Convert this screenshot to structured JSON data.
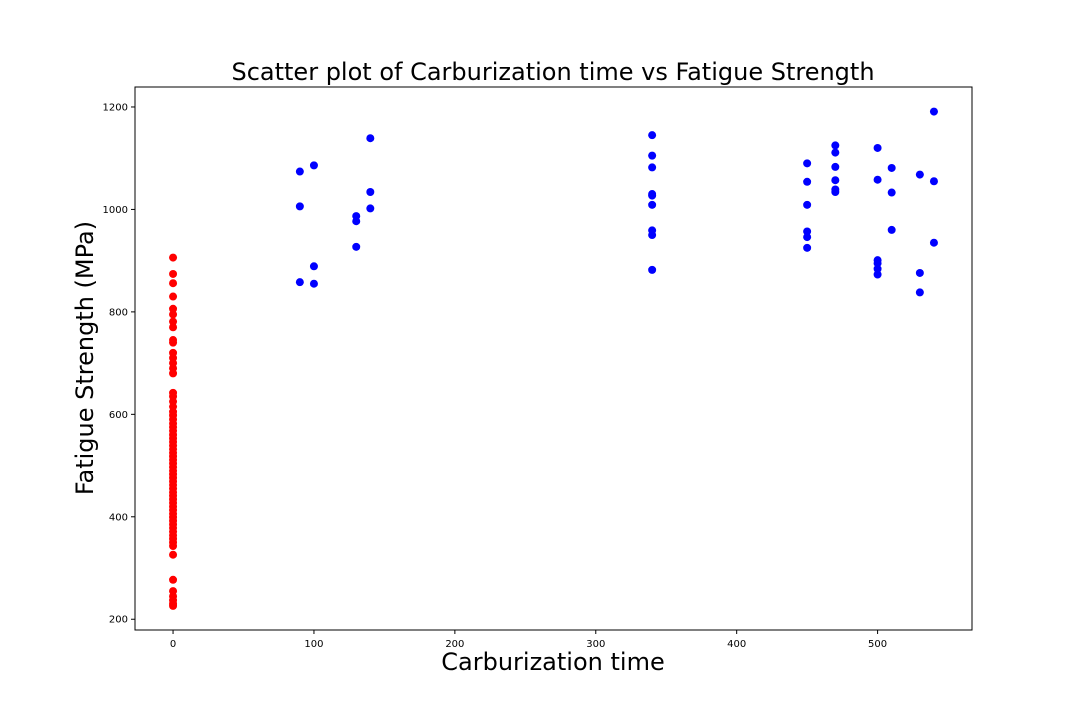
{
  "chart_data": {
    "type": "scatter",
    "title": "Scatter plot of Carburization time vs Fatigue Strength",
    "xlabel": "Carburization time",
    "ylabel": "Fatigue Strength (MPa)",
    "xlim": [
      -27,
      567
    ],
    "ylim": [
      179,
      1239
    ],
    "xticks": [
      0,
      100,
      200,
      300,
      400,
      500
    ],
    "yticks": [
      200,
      400,
      600,
      800,
      1000,
      1200
    ],
    "grid": false,
    "colors": {
      "zero": "#ff0000",
      "nonzero": "#0000ff"
    },
    "series": [
      {
        "color": "#ff0000",
        "points": [
          [
            0,
            906
          ],
          [
            0,
            874
          ],
          [
            0,
            856
          ],
          [
            0,
            830
          ],
          [
            0,
            806
          ],
          [
            0,
            795
          ],
          [
            0,
            781
          ],
          [
            0,
            770
          ],
          [
            0,
            745
          ],
          [
            0,
            740
          ],
          [
            0,
            720
          ],
          [
            0,
            710
          ],
          [
            0,
            700
          ],
          [
            0,
            690
          ],
          [
            0,
            680
          ],
          [
            0,
            642
          ],
          [
            0,
            635
          ],
          [
            0,
            625
          ],
          [
            0,
            615
          ],
          [
            0,
            605
          ],
          [
            0,
            598
          ],
          [
            0,
            590
          ],
          [
            0,
            582
          ],
          [
            0,
            575
          ],
          [
            0,
            568
          ],
          [
            0,
            560
          ],
          [
            0,
            553
          ],
          [
            0,
            546
          ],
          [
            0,
            539
          ],
          [
            0,
            532
          ],
          [
            0,
            525
          ],
          [
            0,
            518
          ],
          [
            0,
            511
          ],
          [
            0,
            504
          ],
          [
            0,
            497
          ],
          [
            0,
            490
          ],
          [
            0,
            483
          ],
          [
            0,
            476
          ],
          [
            0,
            469
          ],
          [
            0,
            462
          ],
          [
            0,
            455
          ],
          [
            0,
            448
          ],
          [
            0,
            441
          ],
          [
            0,
            434
          ],
          [
            0,
            427
          ],
          [
            0,
            420
          ],
          [
            0,
            413
          ],
          [
            0,
            406
          ],
          [
            0,
            399
          ],
          [
            0,
            392
          ],
          [
            0,
            385
          ],
          [
            0,
            378
          ],
          [
            0,
            371
          ],
          [
            0,
            364
          ],
          [
            0,
            357
          ],
          [
            0,
            350
          ],
          [
            0,
            343
          ],
          [
            0,
            326
          ],
          [
            0,
            277
          ],
          [
            0,
            255
          ],
          [
            0,
            245
          ],
          [
            0,
            237
          ],
          [
            0,
            230
          ],
          [
            0,
            226
          ]
        ]
      },
      {
        "color": "#0000ff",
        "points": [
          [
            90,
            1074
          ],
          [
            90,
            1006
          ],
          [
            90,
            858
          ],
          [
            100,
            1086
          ],
          [
            100,
            889
          ],
          [
            100,
            855
          ],
          [
            130,
            987
          ],
          [
            130,
            977
          ],
          [
            130,
            927
          ],
          [
            140,
            1139
          ],
          [
            140,
            1034
          ],
          [
            140,
            1002
          ],
          [
            340,
            1145
          ],
          [
            340,
            1105
          ],
          [
            340,
            1082
          ],
          [
            340,
            1030
          ],
          [
            340,
            1027
          ],
          [
            340,
            1009
          ],
          [
            340,
            959
          ],
          [
            340,
            950
          ],
          [
            340,
            882
          ],
          [
            450,
            1090
          ],
          [
            450,
            1054
          ],
          [
            450,
            1009
          ],
          [
            450,
            957
          ],
          [
            450,
            946
          ],
          [
            450,
            925
          ],
          [
            470,
            1125
          ],
          [
            470,
            1111
          ],
          [
            470,
            1083
          ],
          [
            470,
            1057
          ],
          [
            470,
            1039
          ],
          [
            470,
            1034
          ],
          [
            500,
            1120
          ],
          [
            500,
            1058
          ],
          [
            500,
            901
          ],
          [
            500,
            895
          ],
          [
            500,
            884
          ],
          [
            500,
            873
          ],
          [
            510,
            1081
          ],
          [
            510,
            1033
          ],
          [
            510,
            960
          ],
          [
            530,
            1068
          ],
          [
            530,
            876
          ],
          [
            530,
            838
          ],
          [
            540,
            1191
          ],
          [
            540,
            1055
          ],
          [
            540,
            935
          ]
        ]
      }
    ]
  }
}
